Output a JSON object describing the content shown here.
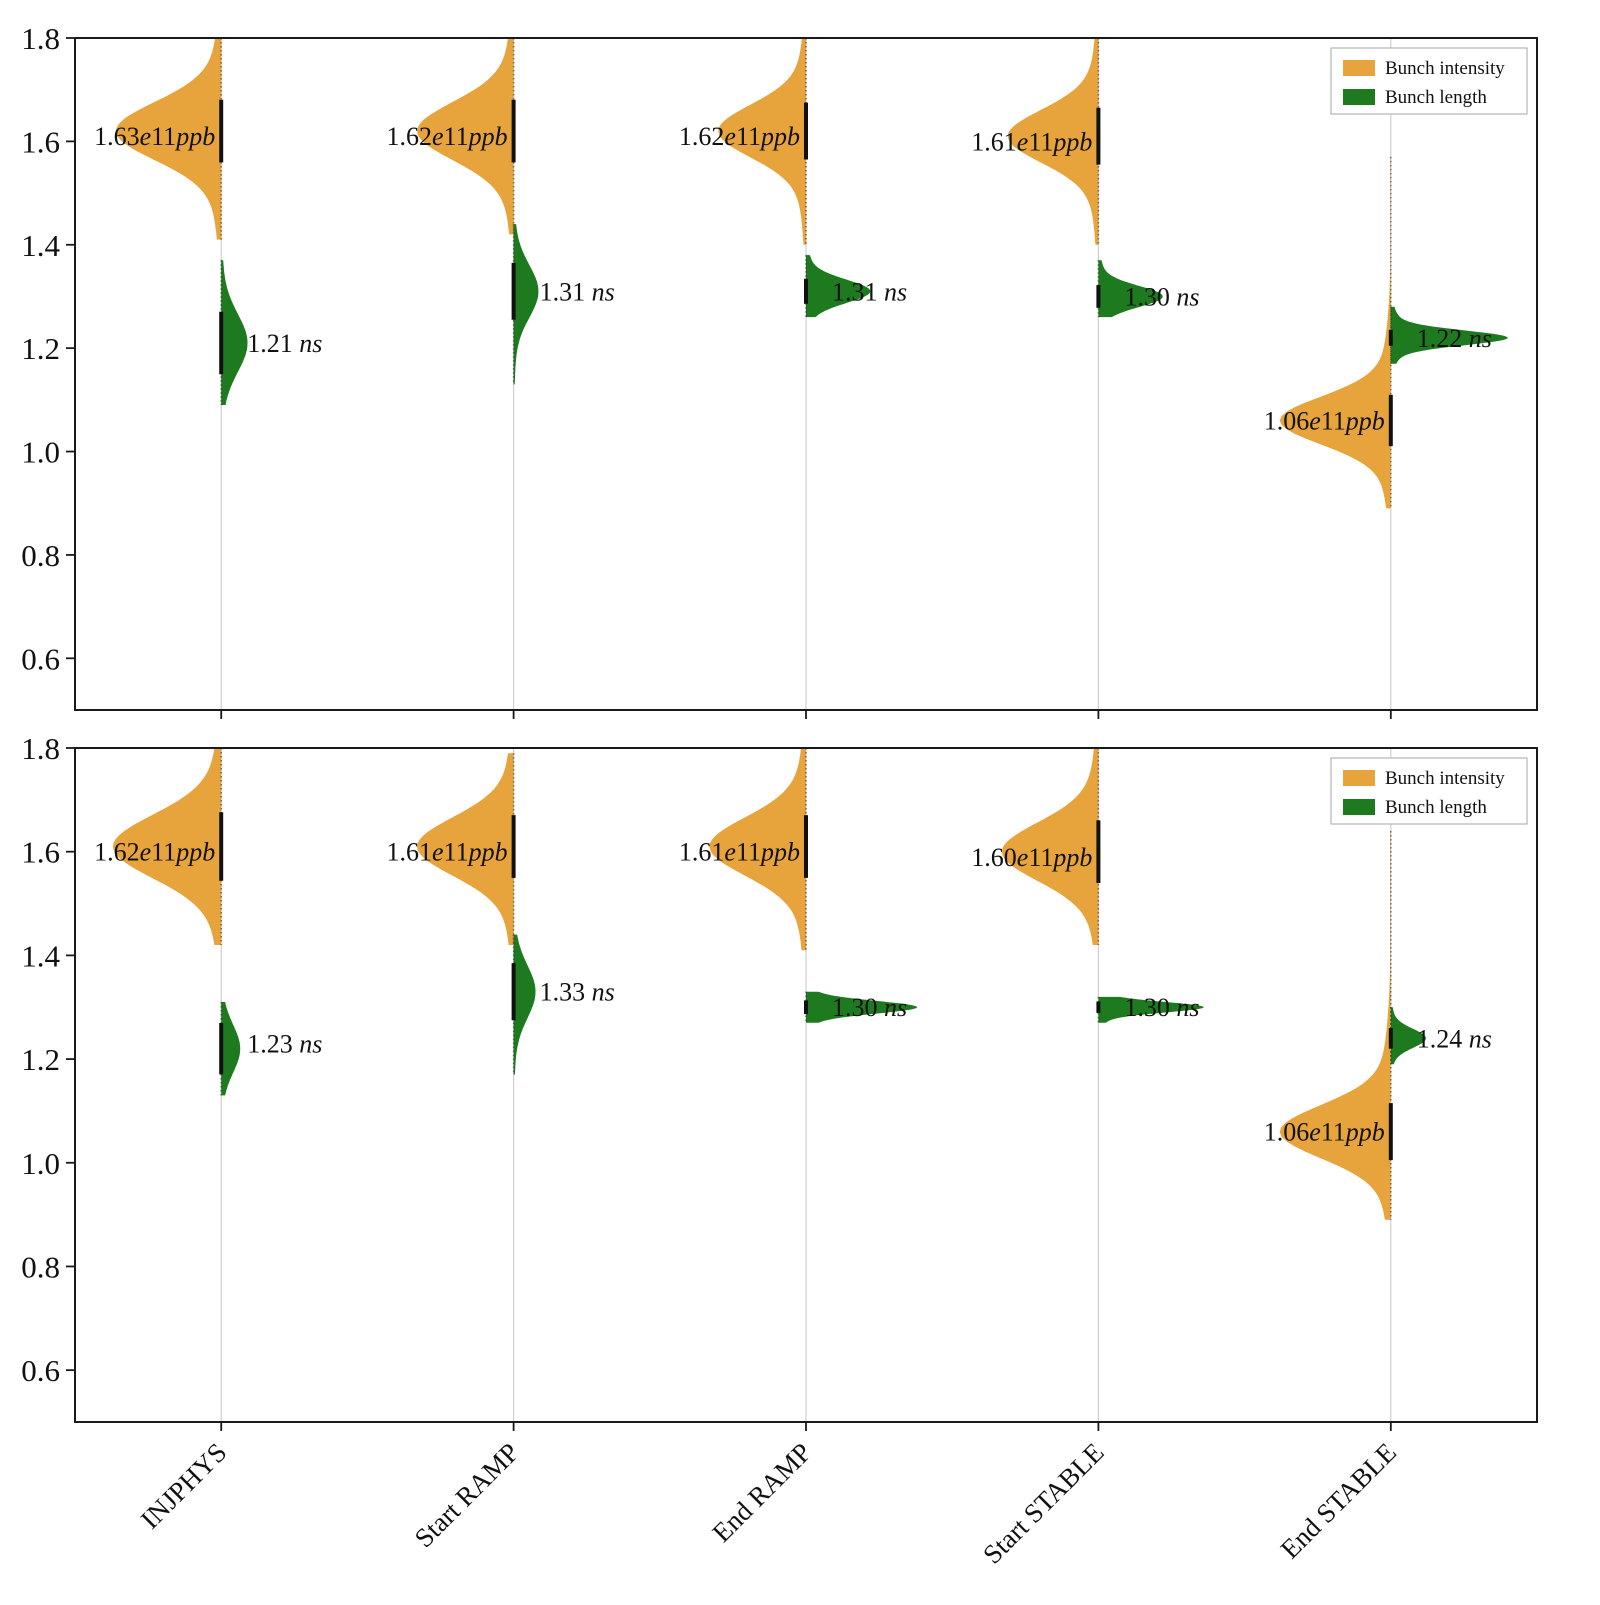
{
  "figure": {
    "background": "#ffffff"
  },
  "colors": {
    "intensity": "#E7A43C",
    "length": "#1D7A1F",
    "grid": "#cfcfcf",
    "frame": "#1a1a1a",
    "text": "#111111"
  },
  "chart_data": [
    {
      "type": "violin",
      "panel": "top",
      "title": "",
      "xlabel": "",
      "ylabel": "",
      "ylim": [
        0.5,
        1.8
      ],
      "yticks": [
        0.6,
        0.8,
        1.0,
        1.2,
        1.4,
        1.6,
        1.8
      ],
      "grid": "vertical-category-lines",
      "categories": [
        "INJPHYS",
        "Start RAMP",
        "End RAMP",
        "Start STABLE",
        "End STABLE"
      ],
      "legend": {
        "position": "upper right",
        "items": [
          {
            "label": "Bunch intensity",
            "color": "#E7A43C"
          },
          {
            "label": "Bunch length",
            "color": "#1D7A1F"
          }
        ]
      },
      "series": [
        {
          "name": "Bunch intensity",
          "side": "left",
          "color": "#E7A43C",
          "unit": "e11 ppb",
          "points": [
            {
              "category": "INJPHYS",
              "label": "1.63e11ppb",
              "mean": 1.63,
              "label_v": 1.61,
              "dist": {
                "center": 1.62,
                "std": 0.055,
                "min": 1.41,
                "max": 1.8,
                "peak_halfwidth": 0.36
              }
            },
            {
              "category": "Start RAMP",
              "label": "1.62e11ppb",
              "mean": 1.62,
              "label_v": 1.61,
              "dist": {
                "center": 1.62,
                "std": 0.055,
                "min": 1.42,
                "max": 1.8,
                "peak_halfwidth": 0.33
              }
            },
            {
              "category": "End RAMP",
              "label": "1.62e11ppb",
              "mean": 1.62,
              "label_v": 1.61,
              "dist": {
                "center": 1.62,
                "std": 0.05,
                "min": 1.4,
                "max": 1.8,
                "peak_halfwidth": 0.3
              }
            },
            {
              "category": "Start STABLE",
              "label": "1.61e11ppb",
              "mean": 1.61,
              "label_v": 1.6,
              "dist": {
                "center": 1.61,
                "std": 0.05,
                "min": 1.4,
                "max": 1.8,
                "peak_halfwidth": 0.31
              }
            },
            {
              "category": "End STABLE",
              "label": "1.06e11ppb",
              "mean": 1.06,
              "label_v": 1.06,
              "dist": {
                "center": 1.06,
                "std": 0.045,
                "min": 0.89,
                "max": 1.57,
                "peak_halfwidth": 0.38
              }
            }
          ]
        },
        {
          "name": "Bunch length",
          "side": "right",
          "color": "#1D7A1F",
          "unit": "ns",
          "points": [
            {
              "category": "INJPHYS",
              "label": "1.21 ns",
              "mean": 1.21,
              "label_v": 1.21,
              "dist": {
                "center": 1.21,
                "std": 0.055,
                "min": 1.09,
                "max": 1.37,
                "peak_halfwidth": 0.09
              }
            },
            {
              "category": "Start RAMP",
              "label": "1.31 ns",
              "mean": 1.31,
              "label_v": 1.31,
              "dist": {
                "center": 1.31,
                "std": 0.05,
                "min": 1.13,
                "max": 1.44,
                "peak_halfwidth": 0.085
              }
            },
            {
              "category": "End RAMP",
              "label": "1.31 ns",
              "mean": 1.31,
              "label_v": 1.31,
              "dist": {
                "center": 1.31,
                "std": 0.022,
                "min": 1.26,
                "max": 1.38,
                "peak_halfwidth": 0.22
              }
            },
            {
              "category": "Start STABLE",
              "label": "1.30 ns",
              "mean": 1.3,
              "label_v": 1.3,
              "dist": {
                "center": 1.3,
                "std": 0.02,
                "min": 1.26,
                "max": 1.37,
                "peak_halfwidth": 0.22
              }
            },
            {
              "category": "End STABLE",
              "label": "1.22 ns",
              "mean": 1.22,
              "label_v": 1.22,
              "dist": {
                "center": 1.22,
                "std": 0.014,
                "min": 1.17,
                "max": 1.28,
                "peak_halfwidth": 0.4
              }
            }
          ]
        }
      ]
    },
    {
      "type": "violin",
      "panel": "bottom",
      "title": "",
      "xlabel": "",
      "ylabel": "",
      "ylim": [
        0.5,
        1.8
      ],
      "yticks": [
        0.6,
        0.8,
        1.0,
        1.2,
        1.4,
        1.6,
        1.8
      ],
      "grid": "vertical-category-lines",
      "categories": [
        "INJPHYS",
        "Start RAMP",
        "End RAMP",
        "Start STABLE",
        "End STABLE"
      ],
      "legend": {
        "position": "upper right",
        "items": [
          {
            "label": "Bunch intensity",
            "color": "#E7A43C"
          },
          {
            "label": "Bunch length",
            "color": "#1D7A1F"
          }
        ]
      },
      "series": [
        {
          "name": "Bunch intensity",
          "side": "left",
          "color": "#E7A43C",
          "unit": "e11 ppb",
          "points": [
            {
              "category": "INJPHYS",
              "label": "1.62e11ppb",
              "mean": 1.62,
              "label_v": 1.6,
              "dist": {
                "center": 1.61,
                "std": 0.06,
                "min": 1.42,
                "max": 1.8,
                "peak_halfwidth": 0.37
              }
            },
            {
              "category": "Start RAMP",
              "label": "1.61e11ppb",
              "mean": 1.61,
              "label_v": 1.6,
              "dist": {
                "center": 1.61,
                "std": 0.055,
                "min": 1.42,
                "max": 1.79,
                "peak_halfwidth": 0.33
              }
            },
            {
              "category": "End RAMP",
              "label": "1.61e11ppb",
              "mean": 1.61,
              "label_v": 1.6,
              "dist": {
                "center": 1.61,
                "std": 0.055,
                "min": 1.41,
                "max": 1.8,
                "peak_halfwidth": 0.33
              }
            },
            {
              "category": "Start STABLE",
              "label": "1.60e11ppb",
              "mean": 1.6,
              "label_v": 1.59,
              "dist": {
                "center": 1.6,
                "std": 0.055,
                "min": 1.42,
                "max": 1.8,
                "peak_halfwidth": 0.33
              }
            },
            {
              "category": "End STABLE",
              "label": "1.06e11ppb",
              "mean": 1.06,
              "label_v": 1.06,
              "dist": {
                "center": 1.06,
                "std": 0.05,
                "min": 0.89,
                "max": 1.64,
                "peak_halfwidth": 0.38
              }
            }
          ]
        },
        {
          "name": "Bunch length",
          "side": "right",
          "color": "#1D7A1F",
          "unit": "ns",
          "points": [
            {
              "category": "INJPHYS",
              "label": "1.23 ns",
              "mean": 1.23,
              "label_v": 1.23,
              "dist": {
                "center": 1.22,
                "std": 0.045,
                "min": 1.13,
                "max": 1.31,
                "peak_halfwidth": 0.065
              }
            },
            {
              "category": "Start RAMP",
              "label": "1.33 ns",
              "mean": 1.33,
              "label_v": 1.33,
              "dist": {
                "center": 1.33,
                "std": 0.05,
                "min": 1.17,
                "max": 1.44,
                "peak_halfwidth": 0.075
              }
            },
            {
              "category": "End RAMP",
              "label": "1.30 ns",
              "mean": 1.3,
              "label_v": 1.3,
              "dist": {
                "center": 1.3,
                "std": 0.012,
                "min": 1.27,
                "max": 1.33,
                "peak_halfwidth": 0.38
              }
            },
            {
              "category": "Start STABLE",
              "label": "1.30 ns",
              "mean": 1.3,
              "label_v": 1.3,
              "dist": {
                "center": 1.3,
                "std": 0.01,
                "min": 1.27,
                "max": 1.32,
                "peak_halfwidth": 0.36
              }
            },
            {
              "category": "End STABLE",
              "label": "1.24 ns",
              "mean": 1.24,
              "label_v": 1.24,
              "dist": {
                "center": 1.24,
                "std": 0.018,
                "min": 1.19,
                "max": 1.3,
                "peak_halfwidth": 0.12
              }
            }
          ]
        }
      ]
    }
  ]
}
